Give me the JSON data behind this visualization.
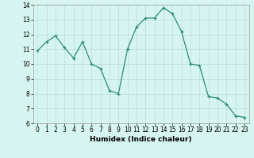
{
  "x": [
    0,
    1,
    2,
    3,
    4,
    5,
    6,
    7,
    8,
    9,
    10,
    11,
    12,
    13,
    14,
    15,
    16,
    17,
    18,
    19,
    20,
    21,
    22,
    23
  ],
  "y": [
    10.9,
    11.5,
    11.9,
    11.1,
    10.4,
    11.5,
    10.0,
    9.7,
    8.2,
    8.0,
    11.0,
    12.5,
    13.1,
    13.1,
    13.8,
    13.4,
    12.2,
    10.0,
    9.9,
    7.8,
    7.7,
    7.3,
    6.5,
    6.4
  ],
  "line_color": "#2d8b77",
  "marker": "+",
  "bg_color": "#d6f5f0",
  "grid_color": "#b8ddd8",
  "xlabel": "Humidex (Indice chaleur)",
  "ylim": [
    6,
    14
  ],
  "xlim": [
    -0.5,
    23.5
  ],
  "yticks": [
    6,
    7,
    8,
    9,
    10,
    11,
    12,
    13,
    14
  ],
  "xticks": [
    0,
    1,
    2,
    3,
    4,
    5,
    6,
    7,
    8,
    9,
    10,
    11,
    12,
    13,
    14,
    15,
    16,
    17,
    18,
    19,
    20,
    21,
    22,
    23
  ],
  "label_fontsize": 6.5,
  "tick_fontsize": 5.5
}
